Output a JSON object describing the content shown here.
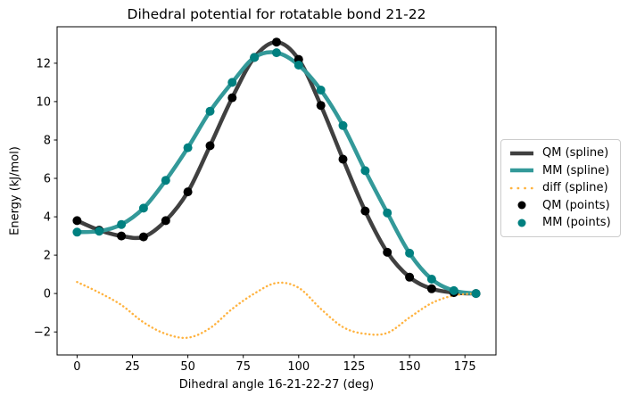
{
  "figure": {
    "title": "Dihedral potential for rotatable bond 21-22",
    "xlabel": "Dihedral angle 16-21-22-27 (deg)",
    "ylabel": "Energy (kJ/mol)"
  },
  "legend": {
    "items": [
      {
        "label": "QM (spline)",
        "swatch": "thick-line",
        "color": "#404040"
      },
      {
        "label": "MM (spline)",
        "swatch": "thick-line",
        "color": "#339999"
      },
      {
        "label": "diff (spline)",
        "swatch": "dotted-line",
        "color": "#FFB340"
      },
      {
        "label": "QM (points)",
        "swatch": "dot",
        "color": "#000000"
      },
      {
        "label": "MM (points)",
        "swatch": "dot",
        "color": "#008080"
      }
    ]
  },
  "chart_data": {
    "type": "line",
    "title": "Dihedral potential for rotatable bond 21-22",
    "xlabel": "Dihedral angle 16-21-22-27 (deg)",
    "ylabel": "Energy (kJ/mol)",
    "grid": false,
    "legend_position": "center-right outside axes",
    "xlim": [
      -9,
      189
    ],
    "ylim": [
      -3.2,
      13.9
    ],
    "xticks": [
      0,
      25,
      50,
      75,
      100,
      125,
      150,
      175
    ],
    "yticks": [
      -2,
      0,
      2,
      4,
      6,
      8,
      10,
      12
    ],
    "x": [
      0,
      10,
      20,
      30,
      40,
      50,
      60,
      70,
      80,
      90,
      100,
      110,
      120,
      130,
      140,
      150,
      160,
      170,
      180
    ],
    "series": [
      {
        "id": "qm-spline",
        "name": "QM (spline)",
        "style": "spline",
        "color": "#404040",
        "values": [
          3.8,
          3.3,
          3.0,
          2.95,
          3.8,
          5.3,
          7.7,
          10.2,
          12.3,
          13.1,
          12.2,
          9.8,
          7.0,
          4.3,
          2.15,
          0.85,
          0.25,
          0.05,
          0.0
        ]
      },
      {
        "id": "mm-spline",
        "name": "MM (spline)",
        "style": "spline",
        "color": "#339999",
        "values": [
          3.2,
          3.25,
          3.6,
          4.45,
          5.9,
          7.6,
          9.5,
          11.0,
          12.3,
          12.55,
          11.9,
          10.6,
          8.75,
          6.4,
          4.2,
          2.1,
          0.75,
          0.15,
          0.0
        ]
      },
      {
        "id": "diff-spline",
        "name": "diff (spline)",
        "style": "dotted-spline",
        "color": "#FFB340",
        "values": [
          0.6,
          0.05,
          -0.6,
          -1.5,
          -2.1,
          -2.3,
          -1.8,
          -0.8,
          0.0,
          0.55,
          0.3,
          -0.8,
          -1.75,
          -2.1,
          -2.05,
          -1.25,
          -0.5,
          -0.1,
          0.0
        ]
      },
      {
        "id": "qm-points",
        "name": "QM (points)",
        "style": "points",
        "color": "#000000",
        "values": [
          3.8,
          3.3,
          3.0,
          2.95,
          3.8,
          5.3,
          7.7,
          10.2,
          12.3,
          13.1,
          12.2,
          9.8,
          7.0,
          4.3,
          2.15,
          0.85,
          0.25,
          0.05,
          0.0
        ]
      },
      {
        "id": "mm-points",
        "name": "MM (points)",
        "style": "points",
        "color": "#008080",
        "values": [
          3.2,
          3.25,
          3.6,
          4.45,
          5.9,
          7.6,
          9.5,
          11.0,
          12.3,
          12.55,
          11.9,
          10.6,
          8.75,
          6.4,
          4.2,
          2.1,
          0.75,
          0.15,
          0.0
        ]
      }
    ]
  }
}
